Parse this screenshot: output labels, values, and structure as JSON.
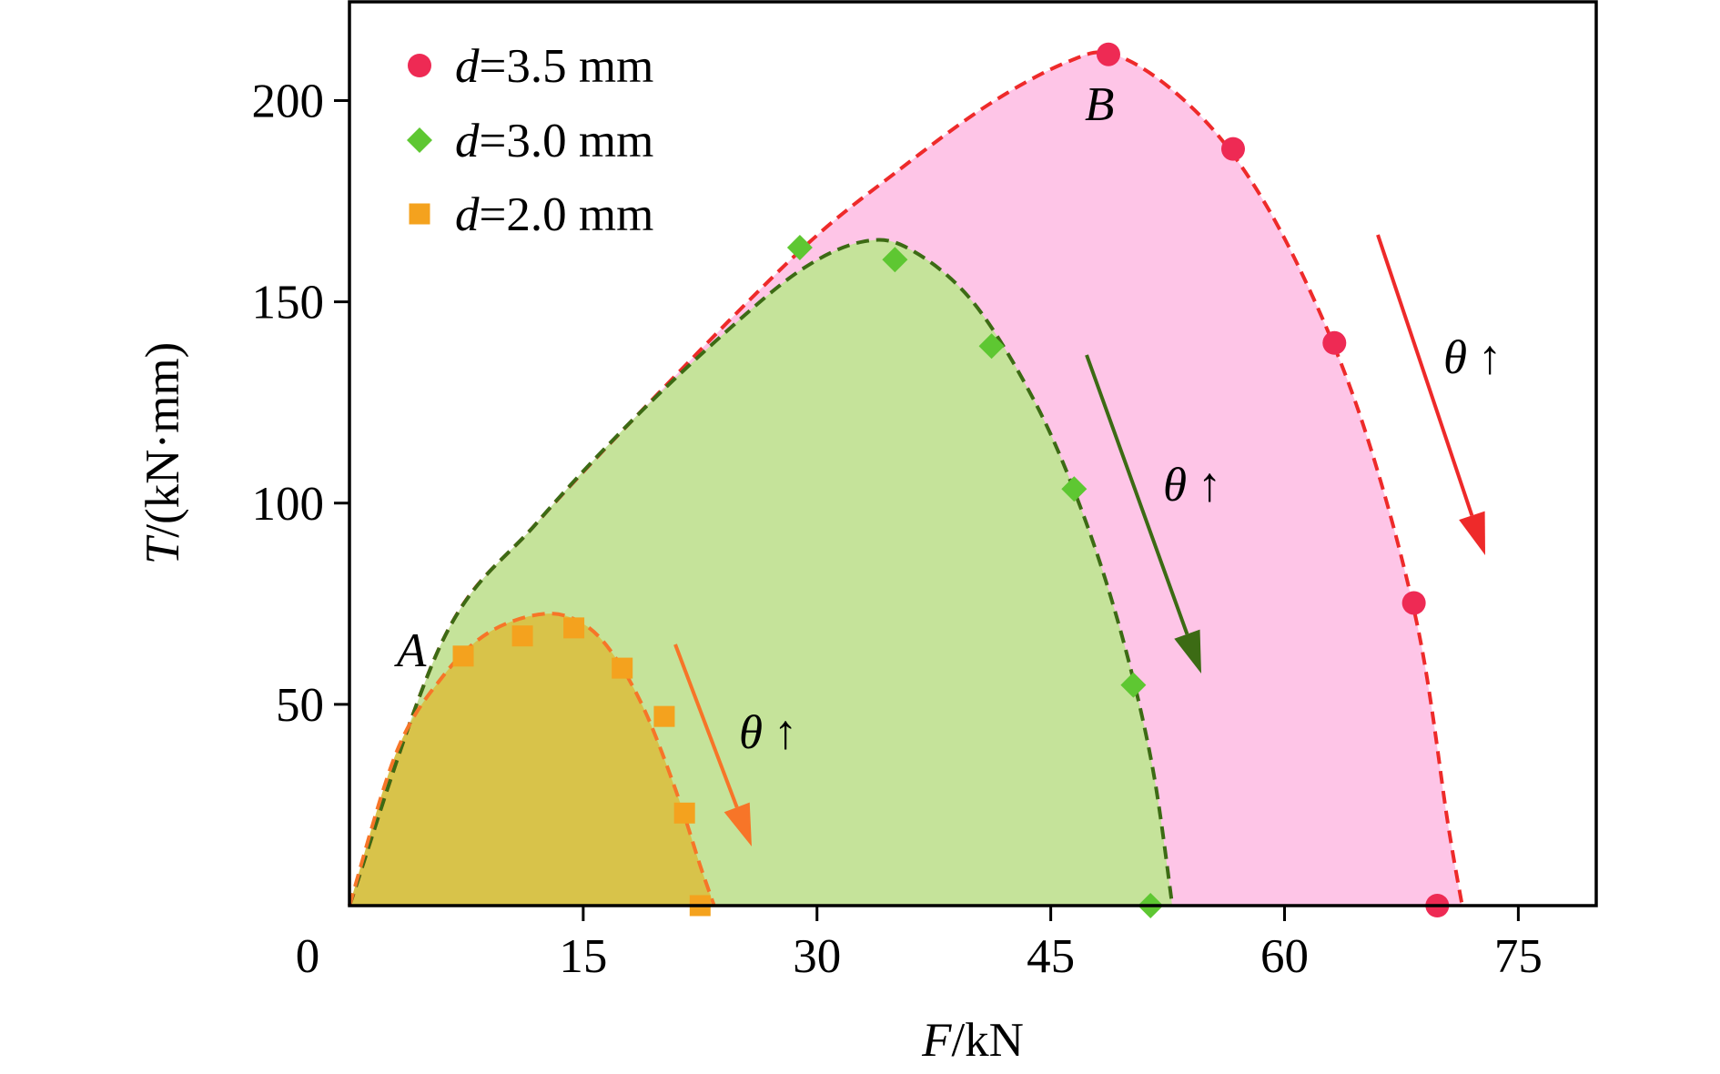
{
  "chart_data": {
    "type": "scatter",
    "xlabel": "F/kN",
    "ylabel": "T/(kN·mm)",
    "xlim": [
      0,
      80
    ],
    "ylim": [
      0,
      225
    ],
    "x_ticks": [
      "0",
      "15",
      "30",
      "45",
      "60",
      "75"
    ],
    "y_ticks": [
      "50",
      "100",
      "150",
      "200"
    ],
    "legend_position": "top-left",
    "series": [
      {
        "name": "d=3.5 mm",
        "name_prefix": "d",
        "name_rest": "=3.5 mm",
        "marker": "circle",
        "color": "#EE2A54",
        "line_color": "#EE2A2A",
        "fill_color": "#FEC5E7",
        "points": [
          [
            48.7,
            211.5
          ],
          [
            56.7,
            188.0
          ],
          [
            63.2,
            139.8
          ],
          [
            68.3,
            75.2
          ],
          [
            69.8,
            0.0
          ]
        ],
        "fit": [
          [
            0.0,
            0.0
          ],
          [
            6.0,
            66.0
          ],
          [
            12.0,
            95.0
          ],
          [
            20.0,
            128.0
          ],
          [
            29.0,
            163.0
          ],
          [
            35.0,
            182.0
          ],
          [
            41.0,
            199.0
          ],
          [
            46.0,
            209.5
          ],
          [
            49.0,
            211.5
          ],
          [
            53.0,
            202.0
          ],
          [
            57.0,
            185.0
          ],
          [
            61.0,
            158.0
          ],
          [
            65.0,
            120.0
          ],
          [
            68.5,
            70.0
          ],
          [
            70.5,
            20.0
          ],
          [
            71.4,
            0.0
          ]
        ]
      },
      {
        "name": "d=3.0 mm",
        "name_prefix": "d",
        "name_rest": "=3.0 mm",
        "marker": "diamond",
        "color": "#5EC732",
        "line_color": "#3C6B14",
        "fill_color": "#C5E39A",
        "points": [
          [
            28.9,
            163.5
          ],
          [
            35.0,
            160.5
          ],
          [
            41.2,
            139.0
          ],
          [
            46.5,
            103.5
          ],
          [
            50.3,
            54.8
          ],
          [
            51.4,
            0.0
          ]
        ],
        "fit": [
          [
            0.0,
            0.0
          ],
          [
            6.0,
            66.0
          ],
          [
            12.0,
            95.0
          ],
          [
            18.0,
            120.0
          ],
          [
            24.0,
            142.0
          ],
          [
            29.0,
            158.0
          ],
          [
            33.0,
            165.0
          ],
          [
            36.0,
            163.0
          ],
          [
            40.0,
            150.0
          ],
          [
            44.0,
            125.0
          ],
          [
            47.0,
            98.0
          ],
          [
            49.5,
            68.0
          ],
          [
            51.5,
            35.0
          ],
          [
            52.8,
            0.0
          ]
        ]
      },
      {
        "name": "d=2.0 mm",
        "name_prefix": "d",
        "name_rest": "=2.0 mm",
        "marker": "square",
        "color": "#F4A21E",
        "line_color": "#F77528",
        "fill_color": "#D8C34A",
        "points": [
          [
            7.3,
            62.0
          ],
          [
            11.1,
            67.0
          ],
          [
            14.4,
            69.0
          ],
          [
            17.5,
            59.0
          ],
          [
            20.2,
            47.0
          ],
          [
            21.5,
            23.0
          ],
          [
            22.5,
            0.0
          ]
        ],
        "fit": [
          [
            0.0,
            0.0
          ],
          [
            3.0,
            38.0
          ],
          [
            6.0,
            57.0
          ],
          [
            9.0,
            68.0
          ],
          [
            12.5,
            72.5
          ],
          [
            15.0,
            70.0
          ],
          [
            17.0,
            62.0
          ],
          [
            19.0,
            48.0
          ],
          [
            21.0,
            28.0
          ],
          [
            22.5,
            10.0
          ],
          [
            23.4,
            0.0
          ]
        ]
      }
    ],
    "annotations": [
      {
        "id": "A",
        "text": "A"
      },
      {
        "id": "B",
        "text": "B"
      },
      {
        "id": "theta-orange",
        "text": "θ↑",
        "color": "#F77528"
      },
      {
        "id": "theta-green",
        "text": "θ↑",
        "color": "#3C6B14"
      },
      {
        "id": "theta-red",
        "text": "θ↑",
        "color": "#EE2A2A"
      }
    ]
  }
}
